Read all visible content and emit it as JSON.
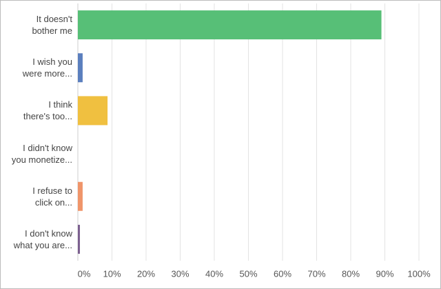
{
  "chart_data": {
    "type": "hbar",
    "categories": [
      "It doesn't\nbother me",
      "I wish you\nwere more...",
      "I think\nthere's too...",
      "I didn't know\nyou monetize...",
      "I refuse to\nclick on...",
      "I don't know\nwhat you are..."
    ],
    "values": [
      89,
      1.4,
      8.7,
      0,
      1.4,
      0.6
    ],
    "colors": [
      "#57bf77",
      "#5b7fbe",
      "#f0c040",
      "#8fb8e0",
      "#f0956a",
      "#7b5f8f"
    ],
    "xlim": [
      0,
      100
    ],
    "xticks": [
      {
        "value": 0,
        "label": "0%"
      },
      {
        "value": 10,
        "label": "10%"
      },
      {
        "value": 20,
        "label": "20%"
      },
      {
        "value": 30,
        "label": "30%"
      },
      {
        "value": 40,
        "label": "40%"
      },
      {
        "value": 50,
        "label": "50%"
      },
      {
        "value": 60,
        "label": "60%"
      },
      {
        "value": 70,
        "label": "70%"
      },
      {
        "value": 80,
        "label": "80%"
      },
      {
        "value": 90,
        "label": "90%"
      },
      {
        "value": 100,
        "label": "100%"
      }
    ],
    "grid": true
  }
}
